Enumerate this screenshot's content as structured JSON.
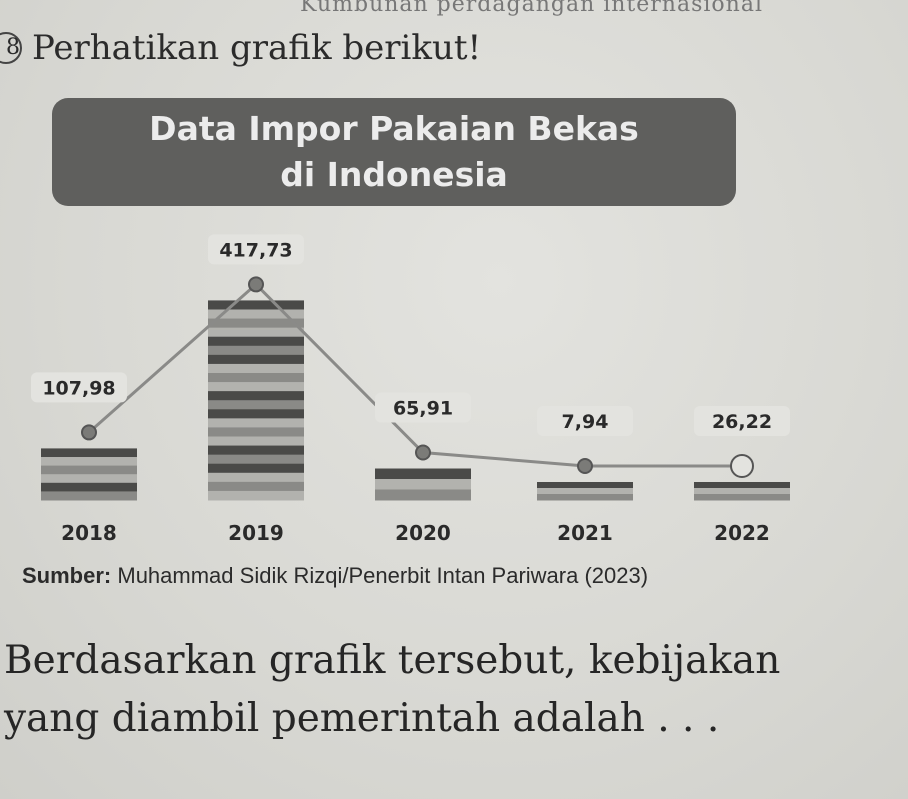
{
  "page": {
    "top_caption": "Kumbunan perdagangan internasional",
    "question_number": "8",
    "prompt": "Perhatikan grafik berikut!",
    "source_label": "Sumber:",
    "source_text": "Muhammad Sidik Rizqi/Penerbit Intan Pariwara (2023)",
    "question_line1": "Berdasarkan grafik tersebut, kebijakan",
    "question_line2": "yang diambil pemerintah adalah . . ."
  },
  "chart_data": {
    "type": "bar",
    "title_line1": "Data Impor Pakaian Bekas",
    "title_line2": "di Indonesia",
    "categories": [
      "2018",
      "2019",
      "2020",
      "2021",
      "2022"
    ],
    "values": [
      107.98,
      417.73,
      65.91,
      7.94,
      26.22
    ],
    "value_labels": [
      "107,98",
      "417,73",
      "65,91",
      "7,94",
      "26,22"
    ],
    "xlabel": "",
    "ylabel": "",
    "ylim": [
      0,
      450
    ],
    "grid": false,
    "legend": "none",
    "overlay_line": true,
    "colors": {
      "bar_dark": "#4a4a48",
      "bar_mid": "#8a8a87",
      "bar_light": "#b2b2ae",
      "line": "#8a8a88",
      "marker": "#7b7b78",
      "label_box": "#e3e3df"
    }
  }
}
